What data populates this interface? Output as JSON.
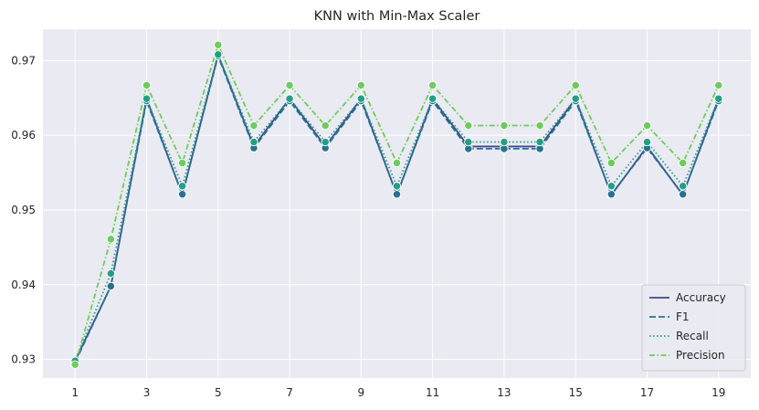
{
  "chart_data": {
    "type": "line",
    "title": "KNN with Min-Max Scaler",
    "xlabel": "",
    "ylabel": "",
    "x": [
      1,
      2,
      3,
      4,
      5,
      6,
      7,
      8,
      9,
      10,
      11,
      12,
      13,
      14,
      15,
      16,
      17,
      18,
      19
    ],
    "xticks": [
      1,
      3,
      5,
      7,
      9,
      11,
      13,
      15,
      17,
      19
    ],
    "xtick_labels": [
      "1",
      "3",
      "5",
      "7",
      "9",
      "11",
      "13",
      "15",
      "17",
      "19"
    ],
    "yticks": [
      0.93,
      0.94,
      0.95,
      0.96,
      0.97
    ],
    "ytick_labels": [
      "0.93",
      "0.94",
      "0.95",
      "0.96",
      "0.97"
    ],
    "xlim": [
      0.1,
      19.9
    ],
    "ylim": [
      0.9275,
      0.9742
    ],
    "grid": true,
    "legend_position": "lower-right",
    "background_color": "#eaeaf2",
    "grid_color": "#ffffff",
    "series": [
      {
        "name": "Accuracy",
        "color": "#3b4a8c",
        "dash": "solid",
        "values": [
          0.9298,
          0.9398,
          0.9649,
          0.952,
          0.9708,
          0.9585,
          0.9649,
          0.9585,
          0.9649,
          0.952,
          0.9649,
          0.9585,
          0.9585,
          0.9585,
          0.9649,
          0.952,
          0.9585,
          0.952,
          0.9649
        ]
      },
      {
        "name": "F1",
        "color": "#2a7190",
        "dash": "dashed",
        "values": [
          0.9296,
          0.9398,
          0.9646,
          0.9521,
          0.9706,
          0.9583,
          0.9646,
          0.9583,
          0.9646,
          0.9521,
          0.9646,
          0.9582,
          0.9582,
          0.9582,
          0.9646,
          0.9521,
          0.9583,
          0.9521,
          0.9646
        ]
      },
      {
        "name": "Recall",
        "color": "#21a085",
        "dash": "dotted",
        "values": [
          0.9298,
          0.9415,
          0.9649,
          0.9532,
          0.9708,
          0.9591,
          0.9649,
          0.9591,
          0.9649,
          0.9532,
          0.9649,
          0.9591,
          0.9591,
          0.9591,
          0.9649,
          0.9532,
          0.9591,
          0.9532,
          0.9649
        ]
      },
      {
        "name": "Precision",
        "color": "#6ccd5a",
        "dash": "dashdot",
        "values": [
          0.9293,
          0.9461,
          0.9667,
          0.9563,
          0.9721,
          0.9613,
          0.9667,
          0.9613,
          0.9667,
          0.9563,
          0.9667,
          0.9613,
          0.9613,
          0.9613,
          0.9667,
          0.9563,
          0.9613,
          0.9563,
          0.9667
        ]
      }
    ]
  }
}
